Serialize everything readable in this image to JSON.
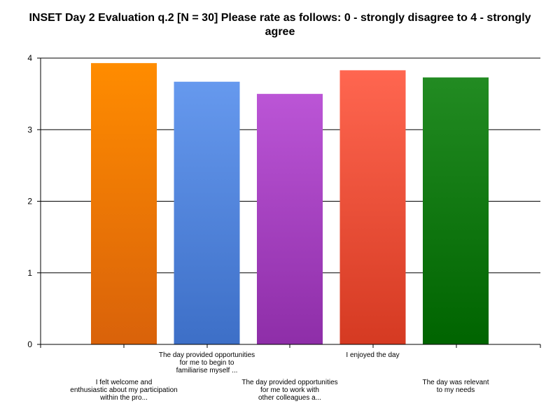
{
  "chart_data": {
    "type": "bar",
    "title": "INSET Day 2 Evaluation q.2 [N = 30] Please rate as follows: 0 - strongly disagree to 4 - strongly agree",
    "xlabel": "",
    "ylabel": "",
    "ylim": [
      0,
      4
    ],
    "yticks": [
      "0",
      "1",
      "2",
      "3",
      "4"
    ],
    "grid": true,
    "categories": [
      "I felt welcome and enthusiastic about my participation within the pro...",
      "The day provided opportunities for me to begin to familiarise myself ...",
      "The day provided opportunities for me to work with other colleagues a...",
      "I enjoyed the day",
      "The day was relevant to my needs"
    ],
    "category_lines": [
      [
        "I felt welcome and",
        "enthusiastic about my participation",
        "within the pro..."
      ],
      [
        "The day provided opportunities",
        "for me to begin to",
        "familiarise myself ..."
      ],
      [
        "The day provided opportunities",
        "for me to work with",
        "other colleagues a..."
      ],
      [
        "I enjoyed the day"
      ],
      [
        "The day was relevant",
        "to my needs"
      ]
    ],
    "values": [
      3.93,
      3.67,
      3.5,
      3.83,
      3.73
    ],
    "colors": [
      [
        "#ff8c00",
        "#d9620a"
      ],
      [
        "#6699ee",
        "#3d6fc7"
      ],
      [
        "#bb55d6",
        "#8e2ea8"
      ],
      [
        "#ff6650",
        "#d53a22"
      ],
      [
        "#228b22",
        "#006400"
      ]
    ]
  }
}
